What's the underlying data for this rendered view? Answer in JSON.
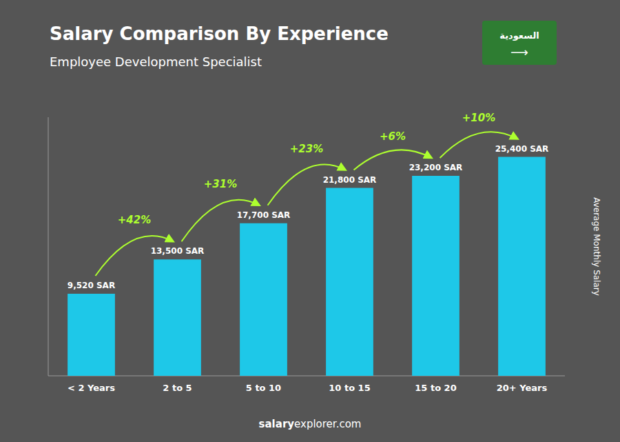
{
  "chart_data": {
    "type": "bar",
    "title": "Salary Comparison By Experience",
    "subtitle": "Employee Development Specialist",
    "ylabel": "Average Monthly Salary",
    "categories": [
      "< 2 Years",
      "2 to 5",
      "5 to 10",
      "10 to 15",
      "15 to 20",
      "20+ Years"
    ],
    "values": [
      9520,
      13500,
      17700,
      21800,
      23200,
      25400
    ],
    "value_labels": [
      "9,520 SAR",
      "13,500 SAR",
      "17,700 SAR",
      "21,800 SAR",
      "23,200 SAR",
      "25,400 SAR"
    ],
    "data_labels": true,
    "annotations": [
      "+42%",
      "+31%",
      "+23%",
      "+6%",
      "+10%"
    ],
    "footer": [
      "salary",
      "explorer.com"
    ],
    "badge": [
      "السعودية",
      "⟶"
    ],
    "color": "#1EC8E8",
    "ylim": [
      0,
      30000
    ],
    "tick_labels": false,
    "grid": false
  }
}
